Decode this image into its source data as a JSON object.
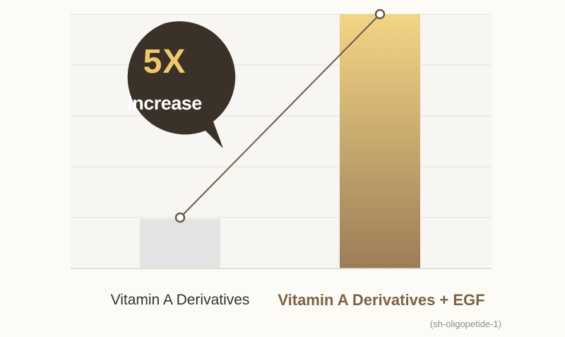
{
  "chart_data": {
    "type": "bar",
    "categories": [
      "Vitamin A Derivatives",
      "Vitamin A Derivatives + EGF"
    ],
    "category_sublabels": [
      "",
      "(sh-oligopetide-1)"
    ],
    "values": [
      1,
      5
    ],
    "ylim": [
      0,
      5
    ],
    "grid": true,
    "title": "",
    "xlabel": "",
    "ylabel": "",
    "annotation": {
      "value": "5X",
      "label": "Increase"
    },
    "trend_line": true
  },
  "colors": {
    "background": "#fdfbf6",
    "plot_background": "#f7f6f2",
    "gridline": "#e5e1da",
    "baseline": "#dad6cf",
    "bar_base": "#e4e4e4",
    "bar_egf_top": "#f3d585",
    "bar_egf_bottom": "#9c7d58",
    "trend_line": "#6d5a4a",
    "callout_fill": "#3a3228",
    "callout_value": "#f0c86c",
    "callout_label": "#ffffff",
    "label_base": "#333333",
    "label_egf": "#7d6345",
    "sublabel": "#8e8e8e"
  }
}
